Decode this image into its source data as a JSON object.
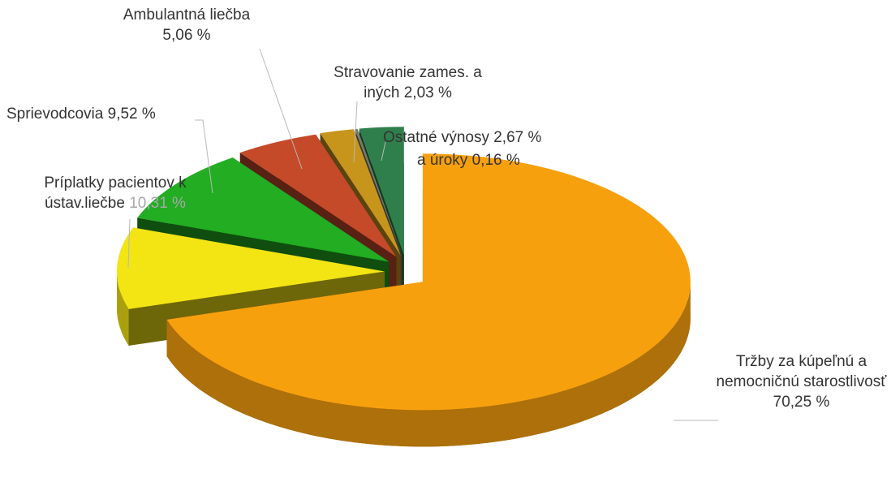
{
  "chart_data": {
    "type": "pie",
    "categories": [
      "Tržby za kúpeľnú a nemocničnú starostlivosť",
      "Príplatky pacientov k ústav.liečbe",
      "Sprievodcovia",
      "Ambulantná liečba",
      "Stravovanie zames. a iných",
      "a úroky",
      "Ostatné výnosy"
    ],
    "values": [
      70.25,
      10.31,
      9.52,
      5.06,
      2.03,
      0.16,
      2.67
    ],
    "value_labels": [
      "70,25 %",
      "10,31 %",
      "9,52 %",
      "5,06 %",
      "2,03 %",
      "0,16 %",
      "2,67 %"
    ],
    "colors": [
      "#f7a00e",
      "#f3e414",
      "#22ad22",
      "#c44a2a",
      "#c7951c",
      "#7a7a6a",
      "#2e7f4c"
    ]
  }
}
